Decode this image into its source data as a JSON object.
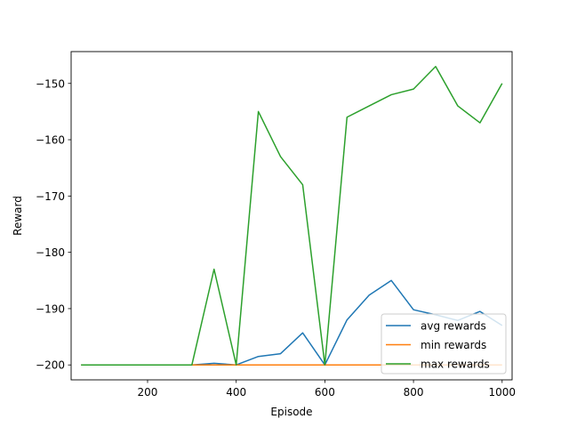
{
  "chart_data": {
    "type": "line",
    "title": "",
    "xlabel": "Episode",
    "ylabel": "Reward",
    "xlim": [
      27.5,
      1022.5
    ],
    "ylim": [
      -202.65,
      -144.35
    ],
    "xticks": [
      200,
      400,
      600,
      800,
      1000
    ],
    "yticks": [
      -200,
      -190,
      -180,
      -170,
      -160,
      -150
    ],
    "ytick_labels": [
      "−200",
      "−190",
      "−180",
      "−170",
      "−160",
      "−150"
    ],
    "xtick_labels": [
      "200",
      "400",
      "600",
      "800",
      "1000"
    ],
    "grid": false,
    "legend_position": "lower-right",
    "x": [
      50,
      100,
      150,
      200,
      250,
      300,
      350,
      400,
      450,
      500,
      550,
      600,
      650,
      700,
      750,
      800,
      850,
      900,
      950,
      1000
    ],
    "series": [
      {
        "name": "avg rewards",
        "color": "#1f77b4",
        "values": [
          -200,
          -200,
          -200,
          -200,
          -200,
          -200,
          -199.7,
          -200,
          -198.5,
          -198,
          -194.3,
          -200,
          -192,
          -187.6,
          -185,
          -190.2,
          -191.1,
          -192.1,
          -190.5,
          -193
        ]
      },
      {
        "name": "min rewards",
        "color": "#ff7f0e",
        "values": [
          -200,
          -200,
          -200,
          -200,
          -200,
          -200,
          -200,
          -200,
          -200,
          -200,
          -200,
          -200,
          -200,
          -200,
          -200,
          -200,
          -200,
          -200,
          -200,
          -200
        ]
      },
      {
        "name": "max rewards",
        "color": "#2ca02c",
        "values": [
          -200,
          -200,
          -200,
          -200,
          -200,
          -200,
          -183,
          -200,
          -155,
          -163,
          -168,
          -200,
          -156,
          -154,
          -152,
          -151,
          -147,
          -154,
          -157,
          -150
        ]
      }
    ]
  }
}
